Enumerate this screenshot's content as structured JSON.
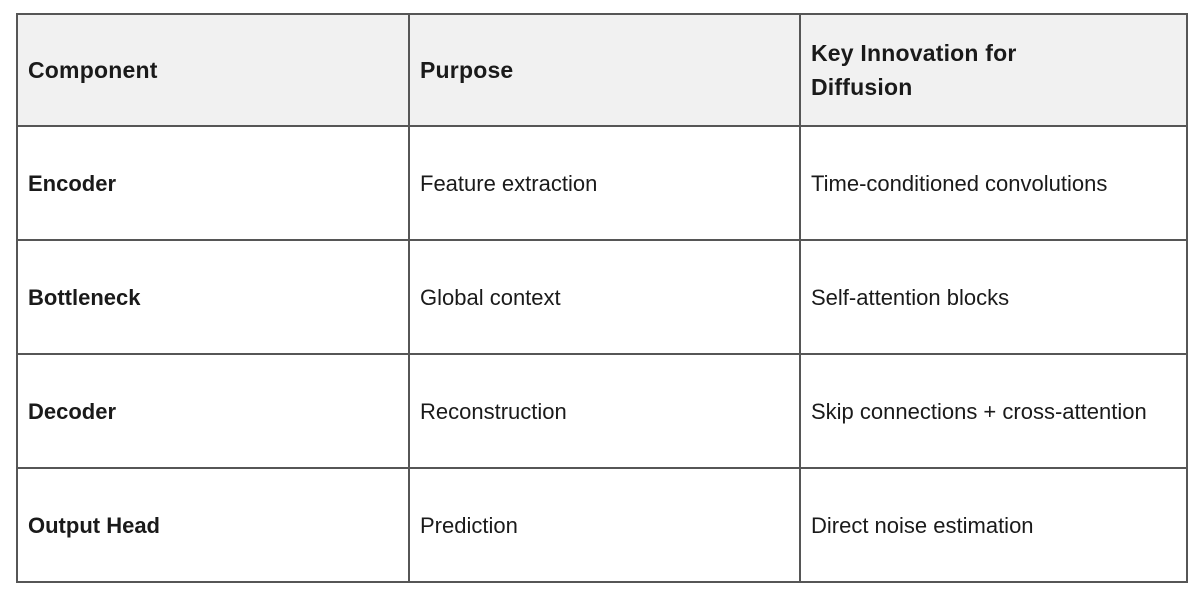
{
  "page": {
    "background_color": "#ffffff"
  },
  "chart_data": {
    "type": "table",
    "title": "",
    "columns": [
      "Component",
      "Purpose",
      "Key Innovation for Diffusion"
    ],
    "rows": [
      [
        "Encoder",
        "Feature extraction",
        "Time-conditioned convolutions"
      ],
      [
        "Bottleneck",
        "Global context",
        "Self-attention blocks"
      ],
      [
        "Decoder",
        "Reconstruction",
        "Skip connections + cross-attention"
      ],
      [
        "Output Head",
        "Prediction",
        "Direct noise estimation"
      ]
    ],
    "layout": {
      "header_background_color": "#f1f1f1",
      "body_background_color": "#ffffff",
      "border_color": "#565656",
      "text_color": "#1a1a1a",
      "header_bold": true,
      "first_column_bold": true,
      "grid": "all"
    }
  }
}
